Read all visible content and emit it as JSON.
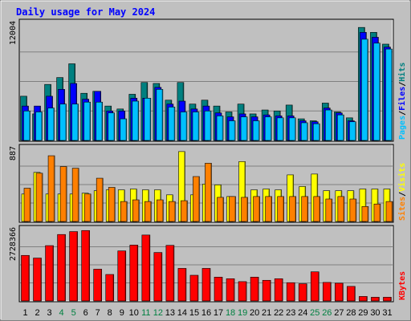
{
  "chart_data": {
    "type": "bar",
    "title": "Daily usage for May 2024",
    "categories": [
      "1",
      "2",
      "3",
      "4",
      "5",
      "6",
      "7",
      "8",
      "9",
      "10",
      "11",
      "12",
      "13",
      "14",
      "15",
      "16",
      "17",
      "18",
      "19",
      "20",
      "21",
      "22",
      "23",
      "24",
      "25",
      "26",
      "27",
      "28",
      "29",
      "30",
      "31"
    ],
    "weekend_days": [
      "4",
      "5",
      "11",
      "12",
      "18",
      "19",
      "25",
      "26"
    ],
    "colors": {
      "hits": "#008080",
      "files": "#0000ff",
      "pages": "#00c0ff",
      "visits": "#ff8000",
      "sites": "#ffff00",
      "kbytes": "#ff0000",
      "background": "#c0c0c0",
      "title": "#0000ff",
      "weekend_label": "#008040"
    },
    "panels": [
      {
        "id": "traffic",
        "max_label": "12004",
        "ylim": [
          0,
          12004
        ],
        "legend": [
          {
            "label": "Pages",
            "color": "#00c0ff"
          },
          {
            "label": "/",
            "color": "#000000"
          },
          {
            "label": "Files",
            "color": "#0000ff"
          },
          {
            "label": "/",
            "color": "#000000"
          },
          {
            "label": "Hits",
            "color": "#008080"
          }
        ],
        "series": [
          {
            "name": "Hits",
            "values": [
              4500,
              2700,
              5700,
              6400,
              7800,
              4800,
              5000,
              3500,
              3200,
              4700,
              5900,
              5800,
              4100,
              5900,
              3700,
              4100,
              3500,
              2900,
              3700,
              2700,
              3100,
              3000,
              3600,
              2200,
              2000,
              3800,
              2900,
              2300,
              11500,
              11000,
              9800
            ]
          },
          {
            "name": "Files",
            "values": [
              3500,
              3500,
              4500,
              5200,
              5800,
              4200,
              5000,
              3000,
              3000,
              4300,
              4300,
              5400,
              3700,
              4000,
              3200,
              3500,
              2800,
              2400,
              2700,
              2400,
              2600,
              2500,
              2500,
              2000,
              1900,
              3300,
              2800,
              2000,
              11000,
              10500,
              9500
            ]
          },
          {
            "name": "Pages",
            "values": [
              3000,
              2900,
              3300,
              3700,
              3700,
              3900,
              3900,
              2800,
              2200,
              4000,
              4300,
              5200,
              3400,
              2900,
              2900,
              3000,
              2500,
              2000,
              2400,
              2000,
              2400,
              2300,
              2300,
              1800,
              1700,
              3100,
              2600,
              1900,
              10300,
              9900,
              9300
            ]
          }
        ]
      },
      {
        "id": "visitors",
        "max_label": "887",
        "ylim": [
          0,
          887
        ],
        "legend": [
          {
            "label": "Sites",
            "color": "#ff8000"
          },
          {
            "label": "/",
            "color": "#000000"
          },
          {
            "label": "Visits",
            "color": "#ffff00"
          }
        ],
        "series": [
          {
            "name": "Visits",
            "values": [
              330,
              590,
              330,
              330,
              330,
              340,
              370,
              380,
              380,
              390,
              380,
              380,
              320,
              840,
              320,
              450,
              440,
              300,
              720,
              380,
              390,
              380,
              560,
              420,
              570,
              370,
              370,
              370,
              390,
              390,
              390
            ]
          },
          {
            "name": "Sites",
            "values": [
              400,
              580,
              790,
              660,
              640,
              330,
              520,
              410,
              240,
              260,
              240,
              260,
              240,
              250,
              540,
              700,
              290,
              300,
              290,
              300,
              300,
              300,
              300,
              300,
              300,
              270,
              300,
              270,
              180,
              210,
              240
            ]
          }
        ]
      },
      {
        "id": "volume",
        "max_label": "2728366",
        "ylim": [
          0,
          2728366
        ],
        "legend": [
          {
            "label": "KBytes",
            "color": "#ff0000"
          }
        ],
        "series": [
          {
            "name": "KBytes",
            "values": [
              1720000,
              1620000,
              2090000,
              2510000,
              2620000,
              2660000,
              1200000,
              1000000,
              1890000,
              2110000,
              2490000,
              1830000,
              2100000,
              1230000,
              970000,
              1230000,
              900000,
              840000,
              730000,
              900000,
              780000,
              840000,
              690000,
              650000,
              1100000,
              700000,
              670000,
              550000,
              170000,
              140000,
              140000
            ]
          }
        ]
      }
    ]
  }
}
